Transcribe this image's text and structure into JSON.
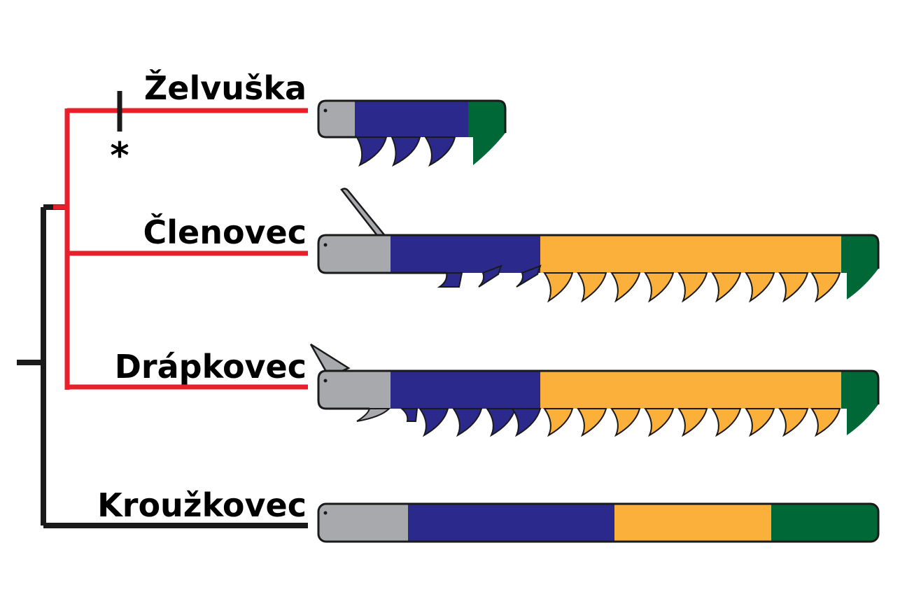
{
  "taxa": [
    {
      "label": "Želvuška"
    },
    {
      "label": "Členovec"
    },
    {
      "label": "Drápkovec"
    },
    {
      "label": "Kroužkovec"
    }
  ],
  "marker": {
    "symbol": "*"
  },
  "colors": {
    "clade_red": "#e8202a",
    "outgroup_black": "#1a1a1a",
    "head_gray": "#a7a9ac",
    "blue": "#2b2a8c",
    "orange": "#fbb03b",
    "green": "#006837"
  }
}
